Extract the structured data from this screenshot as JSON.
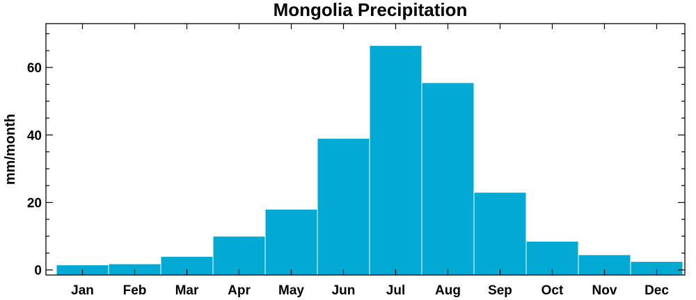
{
  "chart_data": {
    "type": "bar",
    "title": "Mongolia Precipitation",
    "xlabel": "",
    "ylabel": "mm/month",
    "categories": [
      "Jan",
      "Feb",
      "Mar",
      "Apr",
      "May",
      "Jun",
      "Jul",
      "Aug",
      "Sep",
      "Oct",
      "Nov",
      "Dec"
    ],
    "values": [
      1.5,
      1.8,
      4.0,
      10.0,
      18.0,
      39.0,
      66.5,
      55.5,
      23.0,
      8.5,
      4.5,
      2.5
    ],
    "ylim": [
      -1.5,
      73
    ],
    "yticks": [
      0,
      20,
      40,
      60
    ],
    "ytick_labels": [
      "0",
      "20",
      "40",
      "60"
    ],
    "bar_color": "#02A9D3",
    "grid": false
  }
}
